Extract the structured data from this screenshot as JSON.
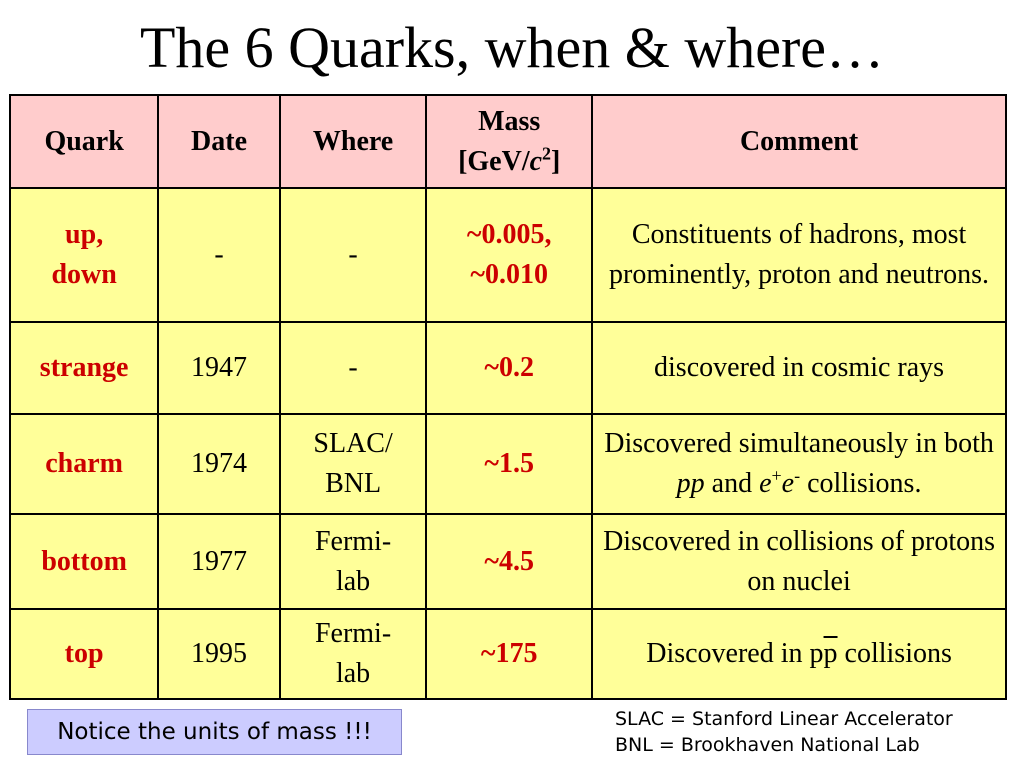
{
  "title": "The 6 Quarks, when & where…",
  "table": {
    "headers": {
      "quark": "Quark",
      "date": "Date",
      "where": "Where",
      "mass_line1": "Mass",
      "mass_open": "[GeV/",
      "mass_c": "c",
      "mass_exp": "2",
      "mass_close": "]",
      "comment": "Comment"
    },
    "rows": [
      {
        "quark_line1": "up,",
        "quark_line2": "down",
        "date": "-",
        "where": "-",
        "mass_line1": "~0.005,",
        "mass_line2": "~0.010",
        "comment": "Constituents of hadrons, most prominently, proton and neutrons."
      },
      {
        "quark": "strange",
        "date": "1947",
        "where": "-",
        "mass": "~0.2",
        "comment": "discovered in cosmic rays"
      },
      {
        "quark": "charm",
        "date": "1974",
        "where_line1": "SLAC/",
        "where_line2": "BNL",
        "mass": "~1.5",
        "comment_a": "Discovered simultaneously in both ",
        "comment_pp": "pp",
        "comment_and": " and ",
        "comment_e1": "e",
        "comment_plus": "+",
        "comment_e2": "e",
        "comment_minus": "-",
        "comment_end": " collisions."
      },
      {
        "quark": "bottom",
        "date": "1977",
        "where_line1": "Fermi-",
        "where_line2": "lab",
        "mass": "~4.5",
        "comment": "Discovered in collisions of protons on nuclei"
      },
      {
        "quark": "top",
        "date": "1995",
        "where_line1": "Fermi-",
        "where_line2": "lab",
        "mass": "~175",
        "comment_a": "Discovered in p",
        "comment_pbar": "p",
        "comment_end": " collisions"
      }
    ]
  },
  "notice": "Notice the units of mass !!!",
  "legend": {
    "slac": "SLAC = Stanford Linear Accelerator",
    "bnl": "BNL = Brookhaven National Lab"
  }
}
